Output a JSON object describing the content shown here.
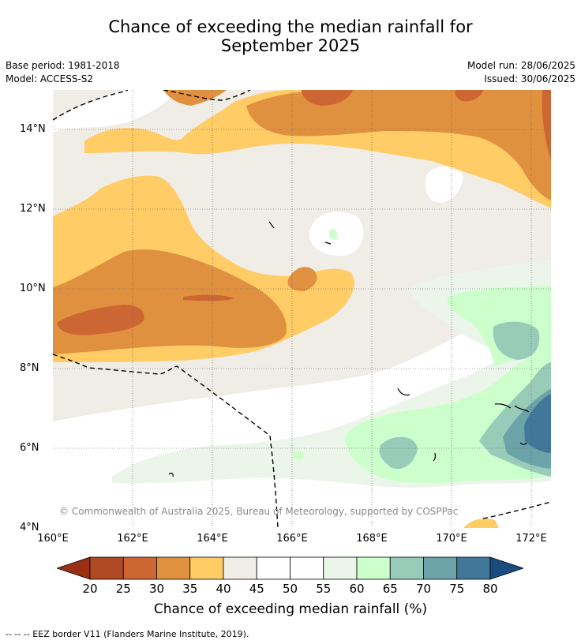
{
  "title": {
    "line1": "Chance of exceeding the median rainfall for",
    "line2": "September 2025"
  },
  "meta": {
    "base_period": "Base period: 1981-2018",
    "model": "Model: ACCESS-S2",
    "model_run": "Model run: 28/06/2025",
    "issued": "Issued: 30/06/2025"
  },
  "map": {
    "lat_labels": [
      "14°N",
      "12°N",
      "10°N",
      "8°N",
      "6°N",
      "4°N"
    ],
    "lon_labels": [
      "160°E",
      "162°E",
      "164°E",
      "166°E",
      "168°E",
      "170°E",
      "172°E"
    ],
    "lat_range": [
      4,
      15
    ],
    "lon_range": [
      160,
      172.5
    ],
    "grid": true,
    "copyright": "© Commonwealth of Australia 2025, Bureau of Meteorology, supported by COSPPac"
  },
  "colorbar": {
    "ticks": [
      "20",
      "25",
      "30",
      "35",
      "40",
      "45",
      "50",
      "55",
      "60",
      "65",
      "70",
      "75",
      "80"
    ],
    "colors": [
      "#993014",
      "#b04a25",
      "#cc6633",
      "#e09140",
      "#ffcc66",
      "#f0ece6",
      "#ffffff",
      "#ffffff",
      "#ebf5ea",
      "#ccffcc",
      "#99ccb8",
      "#6ca3a8",
      "#427799",
      "#1a4c80"
    ],
    "label": "Chance of exceeding median rainfall (%)"
  },
  "footnote": "--  --  -- EEZ border V11 (Flanders Marine Institute, 2019)."
}
